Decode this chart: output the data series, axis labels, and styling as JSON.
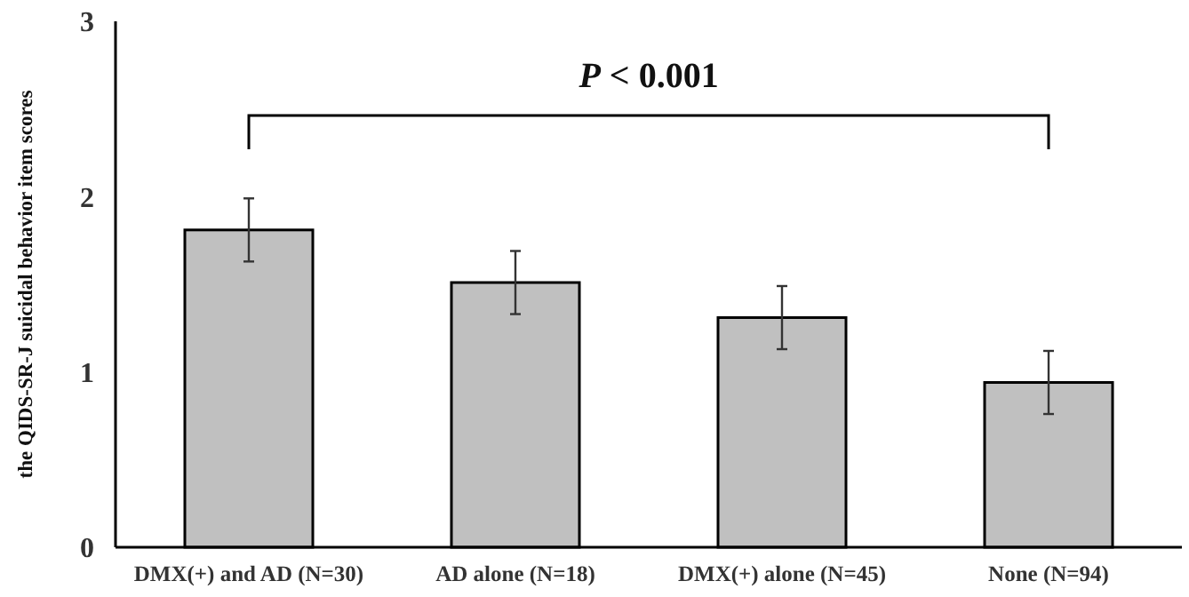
{
  "chart_data": {
    "type": "bar",
    "ylabel": "the QIDS-SR-J suicidal behavior item scores",
    "categories": [
      "DMX(+) and AD (N=30)",
      "AD alone (N=18)",
      "DMX(+) alone (N=45)",
      "None (N=94)"
    ],
    "values": [
      1.81,
      1.51,
      1.31,
      0.94
    ],
    "errors": [
      0.18,
      0.18,
      0.18,
      0.18
    ],
    "color": "#c0c0c0",
    "ylim": [
      0,
      3
    ],
    "yticks": [
      0,
      1,
      2,
      3
    ],
    "annotations": [
      "P < 0.001"
    ],
    "grid": false
  }
}
